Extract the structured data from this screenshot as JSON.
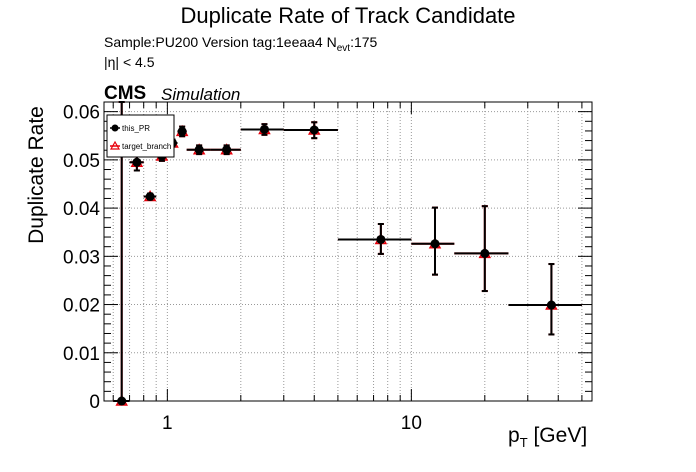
{
  "header": {
    "title": "Duplicate Rate of Track Candidate",
    "info_line1": "Sample:PU200   Version tag:1eeaa4  N",
    "info_line1_sub": "evt",
    "info_line1_tail": ":175",
    "info_line2": "|η| < 4.5",
    "cms_label": "CMS",
    "simulation_label": "Simulation"
  },
  "chart_data": {
    "type": "scatter",
    "title": "Duplicate Rate of Track Candidate",
    "xlabel": "p",
    "xlabel_sub": "T",
    "xlabel_unit": " [GeV]",
    "ylabel": "Duplicate Rate",
    "x_scale": "log",
    "xlim": [
      0.55,
      55
    ],
    "ylim": [
      0,
      0.062
    ],
    "grid": true,
    "x_ticks": [
      {
        "value": 1,
        "label": "1"
      },
      {
        "value": 10,
        "label": "10"
      }
    ],
    "y_ticks": [
      {
        "value": 0,
        "label": "0"
      },
      {
        "value": 0.01,
        "label": "0.01"
      },
      {
        "value": 0.02,
        "label": "0.02"
      },
      {
        "value": 0.03,
        "label": "0.03"
      },
      {
        "value": 0.04,
        "label": "0.04"
      },
      {
        "value": 0.05,
        "label": "0.05"
      },
      {
        "value": 0.06,
        "label": "0.06"
      }
    ],
    "legend_position": "top-left",
    "series": [
      {
        "name": "this_PR",
        "color": "#000000",
        "marker": "circle",
        "points": [
          {
            "x": 0.65,
            "xlo": 0.6,
            "xhi": 0.7,
            "y": 0.0,
            "ylo": 0.0,
            "yhi": 0.062
          },
          {
            "x": 0.75,
            "xlo": 0.7,
            "xhi": 0.8,
            "y": 0.0495,
            "ylo": 0.0478,
            "yhi": 0.051
          },
          {
            "x": 0.85,
            "xlo": 0.8,
            "xhi": 0.9,
            "y": 0.0424,
            "ylo": 0.0418,
            "yhi": 0.043
          },
          {
            "x": 0.95,
            "xlo": 0.9,
            "xhi": 1.0,
            "y": 0.0508,
            "ylo": 0.0498,
            "yhi": 0.0518
          },
          {
            "x": 1.05,
            "xlo": 1.0,
            "xhi": 1.1,
            "y": 0.0535,
            "ylo": 0.0528,
            "yhi": 0.0542
          },
          {
            "x": 1.15,
            "xlo": 1.1,
            "xhi": 1.2,
            "y": 0.0559,
            "ylo": 0.0549,
            "yhi": 0.0569
          },
          {
            "x": 1.35,
            "xlo": 1.2,
            "xhi": 1.5,
            "y": 0.0521,
            "ylo": 0.0512,
            "yhi": 0.053
          },
          {
            "x": 1.75,
            "xlo": 1.5,
            "xhi": 2.0,
            "y": 0.0521,
            "ylo": 0.0512,
            "yhi": 0.053
          },
          {
            "x": 2.5,
            "xlo": 2.0,
            "xhi": 3.0,
            "y": 0.0563,
            "ylo": 0.0552,
            "yhi": 0.0574
          },
          {
            "x": 4.0,
            "xlo": 3.0,
            "xhi": 5.0,
            "y": 0.0562,
            "ylo": 0.0545,
            "yhi": 0.0578
          },
          {
            "x": 7.5,
            "xlo": 5.0,
            "xhi": 10.0,
            "y": 0.0335,
            "ylo": 0.0305,
            "yhi": 0.0367
          },
          {
            "x": 12.5,
            "xlo": 10.0,
            "xhi": 15.0,
            "y": 0.0326,
            "ylo": 0.0262,
            "yhi": 0.0401
          },
          {
            "x": 20.0,
            "xlo": 15.0,
            "xhi": 25.0,
            "y": 0.0306,
            "ylo": 0.0228,
            "yhi": 0.0404
          },
          {
            "x": 37.5,
            "xlo": 25.0,
            "xhi": 50.0,
            "y": 0.0199,
            "ylo": 0.0138,
            "yhi": 0.0284
          }
        ]
      },
      {
        "name": "target_branch",
        "color": "#e8000b",
        "marker": "triangle-up-open",
        "points": [
          {
            "x": 0.65,
            "xlo": 0.6,
            "xhi": 0.7,
            "y": 0.0,
            "ylo": 0.0,
            "yhi": 0.062
          },
          {
            "x": 0.75,
            "xlo": 0.7,
            "xhi": 0.8,
            "y": 0.0495,
            "ylo": 0.0478,
            "yhi": 0.051
          },
          {
            "x": 0.85,
            "xlo": 0.8,
            "xhi": 0.9,
            "y": 0.0424,
            "ylo": 0.0418,
            "yhi": 0.043
          },
          {
            "x": 0.95,
            "xlo": 0.9,
            "xhi": 1.0,
            "y": 0.0508,
            "ylo": 0.0498,
            "yhi": 0.0518
          },
          {
            "x": 1.05,
            "xlo": 1.0,
            "xhi": 1.1,
            "y": 0.0535,
            "ylo": 0.0528,
            "yhi": 0.0542
          },
          {
            "x": 1.15,
            "xlo": 1.1,
            "xhi": 1.2,
            "y": 0.0559,
            "ylo": 0.0549,
            "yhi": 0.0569
          },
          {
            "x": 1.35,
            "xlo": 1.2,
            "xhi": 1.5,
            "y": 0.0521,
            "ylo": 0.0512,
            "yhi": 0.053
          },
          {
            "x": 1.75,
            "xlo": 1.5,
            "xhi": 2.0,
            "y": 0.0521,
            "ylo": 0.0512,
            "yhi": 0.053
          },
          {
            "x": 2.5,
            "xlo": 2.0,
            "xhi": 3.0,
            "y": 0.0563,
            "ylo": 0.0552,
            "yhi": 0.0574
          },
          {
            "x": 4.0,
            "xlo": 3.0,
            "xhi": 5.0,
            "y": 0.0562,
            "ylo": 0.0545,
            "yhi": 0.0578
          },
          {
            "x": 7.5,
            "xlo": 5.0,
            "xhi": 10.0,
            "y": 0.0335,
            "ylo": 0.0305,
            "yhi": 0.0367
          },
          {
            "x": 12.5,
            "xlo": 10.0,
            "xhi": 15.0,
            "y": 0.0326,
            "ylo": 0.0262,
            "yhi": 0.0401
          },
          {
            "x": 20.0,
            "xlo": 15.0,
            "xhi": 25.0,
            "y": 0.0306,
            "ylo": 0.0228,
            "yhi": 0.0404
          },
          {
            "x": 37.5,
            "xlo": 25.0,
            "xhi": 50.0,
            "y": 0.0199,
            "ylo": 0.0138,
            "yhi": 0.0284
          }
        ]
      }
    ]
  }
}
